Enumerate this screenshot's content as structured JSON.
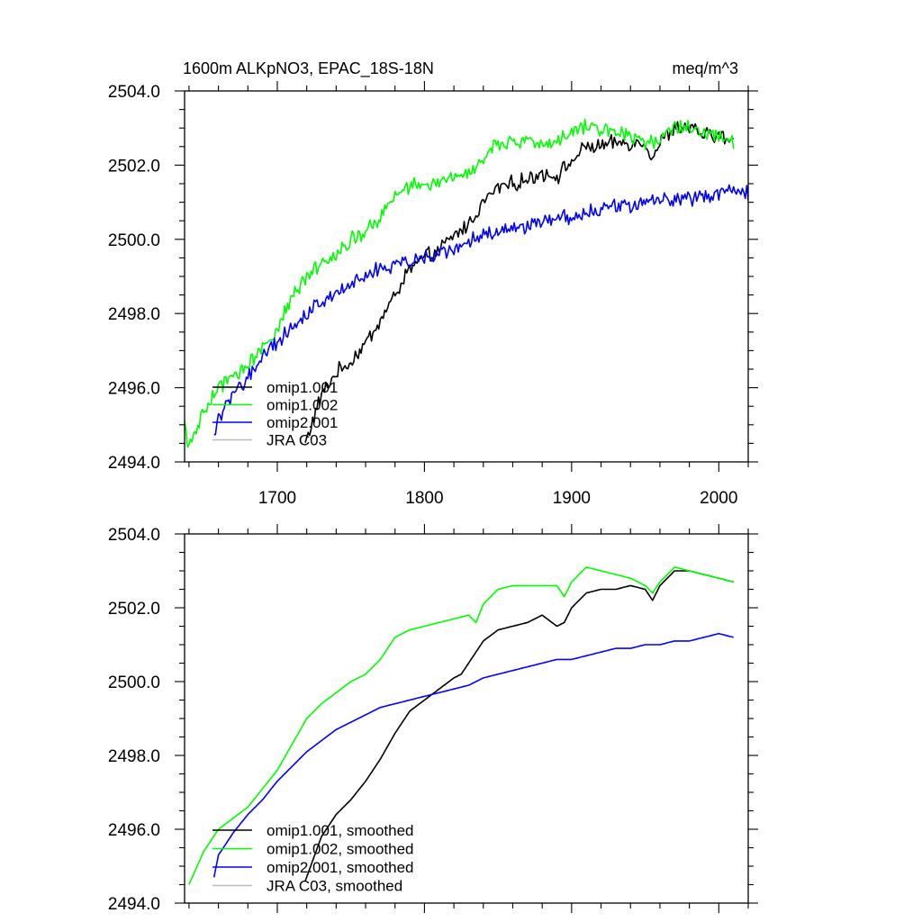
{
  "chart_data": [
    {
      "type": "line",
      "title": "1600m ALKpNO3, EPAC_18S-18N",
      "units": "meq/m^3",
      "xlabel": "",
      "ylabel": "",
      "xlim": [
        1637,
        2020
      ],
      "ylim": [
        2494,
        2504
      ],
      "xticks": [
        1700,
        1800,
        1900,
        2000
      ],
      "xtick_labels": [
        "1700",
        "1800",
        "1900",
        "2000"
      ],
      "yticks": [
        2494,
        2496,
        2498,
        2500,
        2502,
        2504
      ],
      "ytick_labels": [
        "2494.0",
        "2496.0",
        "2498.0",
        "2500.0",
        "2502.0",
        "2504.0"
      ],
      "noise": 1,
      "legend": [
        "omip1.001",
        "omip1.002",
        "omip2.001",
        "JRA C03"
      ],
      "series": [
        {
          "name": "omip1.001",
          "color": "#000000",
          "x": [
            1719,
            1730,
            1740,
            1750,
            1760,
            1770,
            1780,
            1790,
            1800,
            1810,
            1820,
            1830,
            1840,
            1850,
            1860,
            1870,
            1880,
            1890,
            1900,
            1910,
            1920,
            1930,
            1940,
            1950,
            1955,
            1960,
            1970,
            1980,
            1990,
            2000,
            2010
          ],
          "y": [
            2494.5,
            2495.8,
            2496.4,
            2496.7,
            2497.2,
            2497.8,
            2498.5,
            2499.2,
            2499.5,
            2499.7,
            2500.1,
            2500.4,
            2501.0,
            2501.4,
            2501.5,
            2501.6,
            2501.8,
            2501.7,
            2502.1,
            2502.5,
            2502.5,
            2502.6,
            2502.6,
            2502.6,
            2502.2,
            2502.6,
            2503.0,
            2503.0,
            2502.8,
            2502.8,
            2502.6
          ]
        },
        {
          "name": "omip1.002",
          "color": "#00ff00",
          "x": [
            1637,
            1640,
            1650,
            1660,
            1670,
            1680,
            1690,
            1700,
            1710,
            1720,
            1730,
            1740,
            1750,
            1760,
            1770,
            1780,
            1790,
            1800,
            1810,
            1820,
            1830,
            1840,
            1850,
            1860,
            1870,
            1880,
            1890,
            1900,
            1910,
            1920,
            1930,
            1940,
            1950,
            1960,
            1970,
            1980,
            1990,
            2000,
            2010
          ],
          "y": [
            2495.0,
            2494.4,
            2495.3,
            2496.0,
            2496.3,
            2496.6,
            2497.1,
            2497.6,
            2498.4,
            2499.0,
            2499.4,
            2499.6,
            2500.0,
            2500.2,
            2500.6,
            2501.2,
            2501.4,
            2501.5,
            2501.5,
            2501.7,
            2501.8,
            2502.2,
            2502.6,
            2502.6,
            2502.6,
            2502.6,
            2502.6,
            2502.9,
            2503.1,
            2503.0,
            2502.9,
            2502.8,
            2502.6,
            2502.7,
            2503.1,
            2503.0,
            2502.9,
            2502.8,
            2502.6
          ]
        },
        {
          "name": "omip2.001",
          "color": "#0000ff",
          "x": [
            1657,
            1660,
            1670,
            1680,
            1690,
            1700,
            1710,
            1720,
            1730,
            1740,
            1750,
            1760,
            1770,
            1780,
            1790,
            1800,
            1810,
            1820,
            1830,
            1840,
            1850,
            1860,
            1870,
            1880,
            1890,
            1900,
            1910,
            1920,
            1930,
            1940,
            1950,
            1960,
            1970,
            1980,
            1990,
            2000,
            2010,
            2020
          ],
          "y": [
            2494.7,
            2495.2,
            2495.8,
            2496.3,
            2496.8,
            2497.2,
            2497.6,
            2498.0,
            2498.3,
            2498.6,
            2498.8,
            2499.0,
            2499.2,
            2499.3,
            2499.4,
            2499.5,
            2499.6,
            2499.8,
            2499.9,
            2500.1,
            2500.2,
            2500.3,
            2500.4,
            2500.5,
            2500.6,
            2500.6,
            2500.7,
            2500.8,
            2500.9,
            2500.9,
            2501.0,
            2501.0,
            2501.1,
            2501.1,
            2501.2,
            2501.2,
            2501.3,
            2501.2
          ]
        }
      ]
    },
    {
      "type": "line",
      "title": "",
      "units": "",
      "xlabel": "",
      "ylabel": "",
      "xlim": [
        1637,
        2020
      ],
      "ylim": [
        2494,
        2504
      ],
      "xticks": [
        1700,
        1800,
        1900,
        2000
      ],
      "xtick_labels": [],
      "yticks": [
        2494,
        2496,
        2498,
        2500,
        2502,
        2504
      ],
      "ytick_labels": [
        "2494.0",
        "2496.0",
        "2498.0",
        "2500.0",
        "2502.0",
        "2504.0"
      ],
      "noise": 0,
      "legend": [
        "omip1.001, smoothed",
        "omip1.002, smoothed",
        "omip2.001, smoothed",
        "JRA C03, smoothed"
      ],
      "series": [
        {
          "name": "omip1.001, smoothed",
          "color": "#000000",
          "x": [
            1719,
            1730,
            1740,
            1750,
            1760,
            1770,
            1780,
            1790,
            1800,
            1810,
            1820,
            1825,
            1830,
            1840,
            1850,
            1860,
            1870,
            1880,
            1890,
            1895,
            1900,
            1910,
            1920,
            1930,
            1940,
            1950,
            1955,
            1960,
            1970,
            1980,
            1990,
            2000,
            2010
          ],
          "y": [
            2494.6,
            2495.8,
            2496.4,
            2496.8,
            2497.3,
            2497.9,
            2498.6,
            2499.2,
            2499.5,
            2499.8,
            2500.1,
            2500.2,
            2500.5,
            2501.1,
            2501.4,
            2501.5,
            2501.6,
            2501.8,
            2501.5,
            2501.6,
            2502.0,
            2502.4,
            2502.5,
            2502.5,
            2502.6,
            2502.5,
            2502.2,
            2502.6,
            2503.0,
            2503.0,
            2502.9,
            2502.8,
            2502.7
          ]
        },
        {
          "name": "omip1.002, smoothed",
          "color": "#00ff00",
          "x": [
            1640,
            1650,
            1660,
            1670,
            1680,
            1690,
            1700,
            1710,
            1720,
            1730,
            1740,
            1750,
            1760,
            1770,
            1780,
            1790,
            1800,
            1810,
            1820,
            1830,
            1835,
            1840,
            1850,
            1860,
            1870,
            1880,
            1890,
            1895,
            1900,
            1910,
            1920,
            1930,
            1940,
            1950,
            1955,
            1960,
            1970,
            1980,
            1990,
            2000,
            2010
          ],
          "y": [
            2494.5,
            2495.4,
            2496.0,
            2496.3,
            2496.6,
            2497.1,
            2497.6,
            2498.3,
            2499.0,
            2499.4,
            2499.7,
            2500.0,
            2500.2,
            2500.6,
            2501.2,
            2501.4,
            2501.5,
            2501.6,
            2501.7,
            2501.8,
            2501.6,
            2502.1,
            2502.5,
            2502.6,
            2502.6,
            2502.6,
            2502.6,
            2502.3,
            2502.7,
            2503.1,
            2503.0,
            2502.9,
            2502.8,
            2502.6,
            2502.4,
            2502.7,
            2503.1,
            2503.0,
            2502.9,
            2502.8,
            2502.7
          ]
        },
        {
          "name": "omip2.001, smoothed",
          "color": "#0000ff",
          "x": [
            1657,
            1660,
            1670,
            1680,
            1690,
            1700,
            1710,
            1720,
            1730,
            1740,
            1750,
            1760,
            1770,
            1780,
            1790,
            1800,
            1810,
            1820,
            1830,
            1840,
            1850,
            1860,
            1870,
            1880,
            1890,
            1900,
            1910,
            1920,
            1930,
            1940,
            1950,
            1960,
            1970,
            1980,
            1990,
            2000,
            2010
          ],
          "y": [
            2494.7,
            2495.3,
            2495.9,
            2496.4,
            2496.8,
            2497.3,
            2497.7,
            2498.1,
            2498.4,
            2498.7,
            2498.9,
            2499.1,
            2499.3,
            2499.4,
            2499.5,
            2499.6,
            2499.7,
            2499.8,
            2499.9,
            2500.1,
            2500.2,
            2500.3,
            2500.4,
            2500.5,
            2500.6,
            2500.6,
            2500.7,
            2500.8,
            2500.9,
            2500.9,
            2501.0,
            2501.0,
            2501.1,
            2501.1,
            2501.2,
            2501.3,
            2501.2
          ]
        }
      ]
    }
  ]
}
